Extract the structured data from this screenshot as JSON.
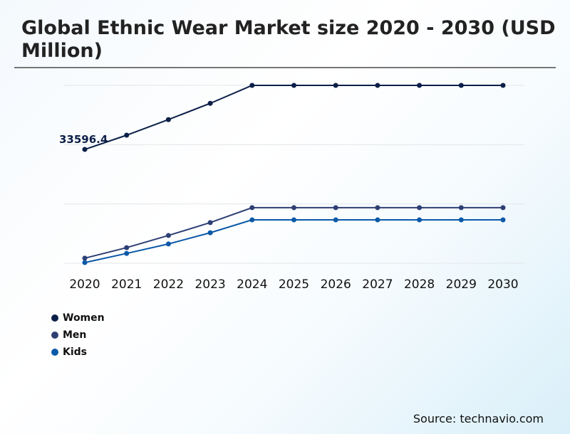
{
  "chart_data": {
    "type": "line",
    "title": "Global Ethnic Wear Market size 2020 - 2030 (USD Million)",
    "categories": [
      "2020",
      "2021",
      "2022",
      "2023",
      "2024",
      "2025",
      "2026",
      "2027",
      "2028",
      "2029",
      "2030"
    ],
    "series": [
      {
        "name": "Women",
        "color": "#0c1f48",
        "values": [
          33596.4,
          37800,
          42400,
          47200,
          52500,
          52500,
          52500,
          52500,
          52500,
          52500,
          52500
        ]
      },
      {
        "name": "Men",
        "color": "#2e3f74",
        "values": [
          1500,
          4600,
          8200,
          12000,
          16400,
          16400,
          16400,
          16400,
          16400,
          16400,
          16400
        ]
      },
      {
        "name": "Kids",
        "color": "#0b59a8",
        "values": [
          200,
          2900,
          5700,
          9000,
          12800,
          12800,
          12800,
          12800,
          12800,
          12800,
          12800
        ]
      }
    ],
    "data_labels": [
      {
        "series": "Women",
        "category": "2020",
        "text": "33596.4"
      }
    ],
    "ylim": [
      0,
      52500
    ],
    "grid": true,
    "legend": "bottom-left",
    "source": "Source: technavio.com"
  }
}
